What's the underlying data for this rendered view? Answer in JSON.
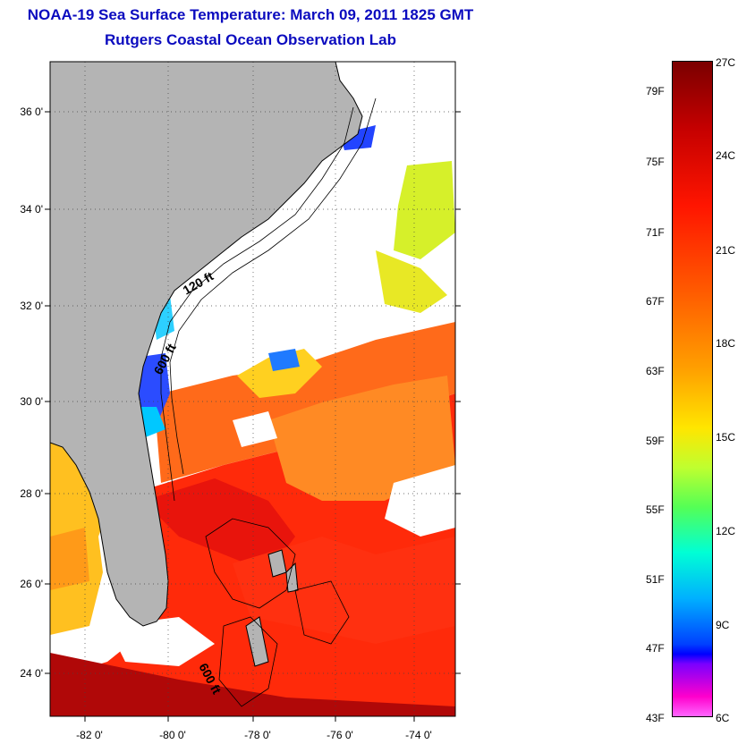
{
  "header": {
    "title": "NOAA-19 Sea Surface Temperature:  March 09, 2011 1825 GMT",
    "subtitle": "Rutgers Coastal Ocean Observation Lab"
  },
  "map": {
    "latitude_labels": [
      "36 0'",
      "34 0'",
      "32 0'",
      "30 0'",
      "28 0'",
      "26 0'",
      "24 0'"
    ],
    "longitude_labels": [
      "-82 0'",
      "-80 0'",
      "-78 0'",
      "-76 0'",
      "-74 0'"
    ],
    "contour_labels": [
      "120 ft",
      "600 ft",
      "600 ft"
    ],
    "land_color": "#b4b4b4",
    "no_data_color": "#ffffff"
  },
  "colorbar": {
    "fahrenheit_labels": [
      "79F",
      "75F",
      "71F",
      "67F",
      "63F",
      "59F",
      "55F",
      "51F",
      "47F",
      "43F"
    ],
    "celsius_labels": [
      "27C",
      "24C",
      "21C",
      "18C",
      "15C",
      "12C",
      "9C",
      "6C"
    ],
    "colors": [
      "#7a0000",
      "#c40000",
      "#ff1500",
      "#ff5a00",
      "#ffa000",
      "#ffe600",
      "#bfff2f",
      "#55ff55",
      "#00ffd5",
      "#00b0ff",
      "#0000ff",
      "#7a00ff",
      "#ff00cc",
      "#ff66ff"
    ]
  }
}
